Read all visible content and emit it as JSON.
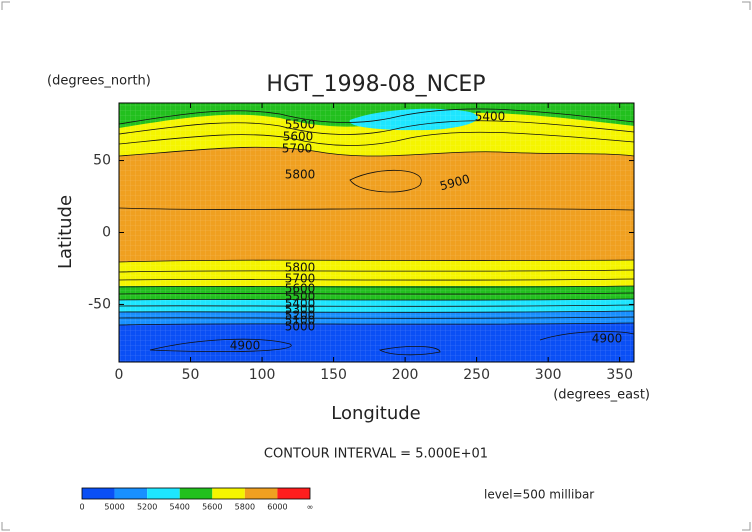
{
  "chart_data": {
    "type": "contour",
    "title": "HGT_1998-08_NCEP",
    "y_units": "(degrees_north)",
    "x_units": "(degrees_east)",
    "x_label": "Longitude",
    "y_label": "Latitude",
    "xlim": [
      0,
      360
    ],
    "ylim": [
      -90,
      90
    ],
    "xticks": [
      0,
      50,
      100,
      150,
      200,
      250,
      300,
      350
    ],
    "yticks": [
      -50,
      0,
      50
    ],
    "contour_interval": "CONTOUR INTERVAL = 5.000E+01",
    "level": "level=500 millibar",
    "contour_labels": [
      "5500",
      "5600",
      "5700",
      "5400",
      "5800",
      "5900",
      "5800",
      "5700",
      "5600",
      "5500",
      "5400",
      "5300",
      "5200",
      "5100",
      "5000",
      "4900",
      "4900"
    ],
    "colorbar": {
      "labels": [
        0,
        5000,
        5200,
        5400,
        5600,
        5800,
        6000,
        "∞"
      ],
      "colors": [
        "#0a4ff5",
        "#1890ff",
        "#1ee6ff",
        "#22c01e",
        "#f5f500",
        "#f0a020",
        "#ff1e1e"
      ]
    }
  }
}
